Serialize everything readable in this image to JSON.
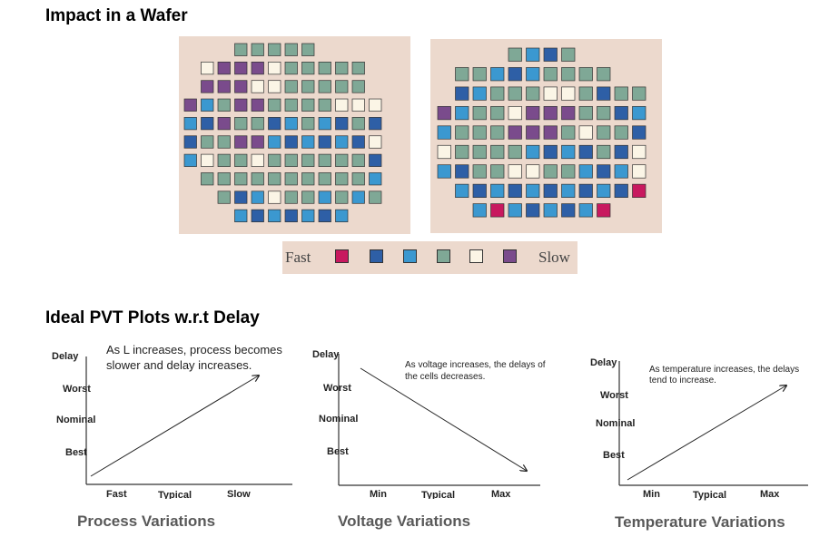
{
  "headings": {
    "wafer": "Impact in a Wafer",
    "pvt": "Ideal PVT Plots w.r.t Delay"
  },
  "legend": {
    "fast_label": "Fast",
    "slow_label": "Slow",
    "colors": [
      "#c8195f",
      "#2e5fa6",
      "#3b98d0",
      "#7fa896",
      "#fbf5e6",
      "#7a4b8c"
    ]
  },
  "wafers": {
    "left_rows": [
      "   GGGGG   ",
      " WPPPWGGGGG ",
      " PPPWWGGGGG ",
      "PBGPPGGGGWWW",
      "BBPGGBBGBBGB",
      "BGGPPBBBBBBW",
      "BWGGWGGGGGGB",
      " GGGGGGGGGGB",
      "  GBBWGGBGBG",
      "   BBBBBBB  "
    ],
    "right_rows": [
      "   GBBG   ",
      " GGBBBGGGG ",
      " BBGGGWWGBGG",
      "PBGGWPPPGGBB",
      "BGGGPPPGWGGB",
      "WGGGGBBBBGBW",
      "BBGGWWGGBBBW",
      " BBBBBBBBBBM",
      "  BMBBBBBM  "
    ]
  },
  "plots": [
    {
      "caption": "Process Variations",
      "note": "As L increases, process becomes slower and delay increases.",
      "y_axis": [
        "Delay",
        "Worst",
        "Nominal",
        "Best"
      ],
      "x_axis": [
        "Fast",
        "Typical",
        "Slow"
      ],
      "trend": "increasing"
    },
    {
      "caption": "Voltage Variations",
      "note": "As voltage increases, the delays of the cells decreases.",
      "y_axis": [
        "Delay",
        "Worst",
        "Nominal",
        "Best"
      ],
      "x_axis": [
        "Min",
        "Typical",
        "Max"
      ],
      "trend": "decreasing"
    },
    {
      "caption": "Temperature Variations",
      "note": "As temperature increases, the delays tend to increase.",
      "y_axis": [
        "Delay",
        "Worst",
        "Nominal",
        "Best"
      ],
      "x_axis": [
        "Min",
        "Typical",
        "Max"
      ],
      "trend": "increasing"
    }
  ]
}
